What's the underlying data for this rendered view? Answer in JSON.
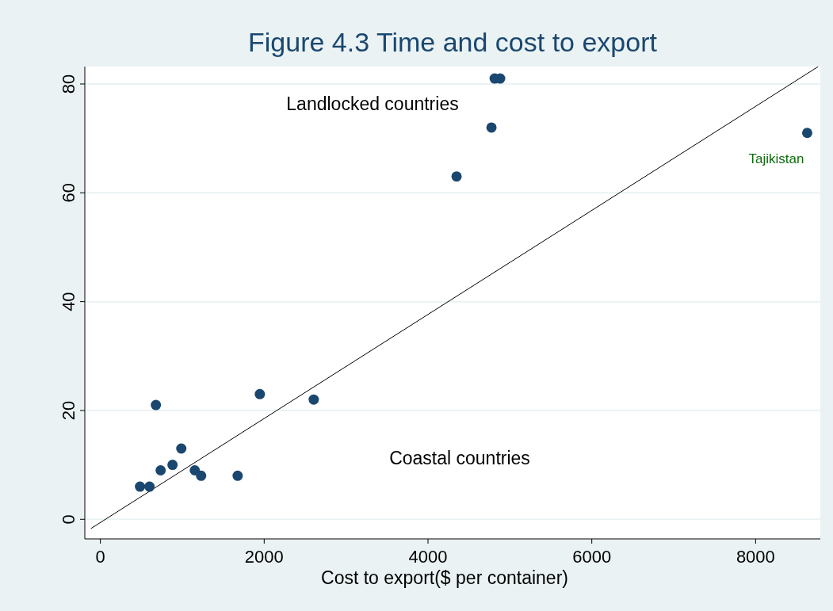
{
  "chart_data": {
    "type": "scatter",
    "title": "Figure 4.3 Time and cost to export",
    "xlabel": "Cost to export($ per container)",
    "xlim": [
      -190,
      8790
    ],
    "ylim": [
      -3.6,
      83.2
    ],
    "xticks": [
      0,
      2000,
      4000,
      6000,
      8000
    ],
    "yticks": [
      0,
      20,
      40,
      60,
      80
    ],
    "grid": "y",
    "series": [
      {
        "color": "#1a476f",
        "marker": "circle",
        "x": [
          484,
          600,
          678,
          736,
          881,
          988,
          1153,
          1230,
          1676,
          1947,
          2605,
          4349,
          4775,
          4814,
          4881,
          8630
        ],
        "values": [
          6,
          6,
          21,
          9,
          10,
          13,
          9,
          8,
          8,
          23,
          22,
          63,
          72,
          81,
          81,
          71
        ]
      },
      {
        "type": "line",
        "color": "#000000",
        "x": [
          -116,
          8765
        ],
        "values": [
          -1.7,
          83.2
        ]
      }
    ],
    "annotations": [
      "Landlocked countries",
      "Coastal countries",
      {
        "text": "Tajikistan",
        "x": 8630,
        "y": 71
      }
    ]
  }
}
